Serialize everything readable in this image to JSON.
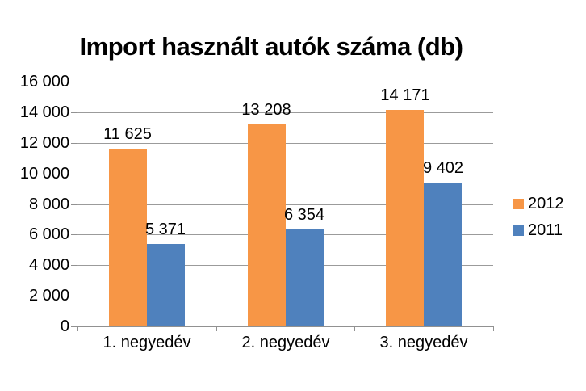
{
  "chart_data": {
    "type": "bar",
    "title": "Import használt autók száma (db)",
    "categories": [
      "1. negyedév",
      "2. negyedév",
      "3. negyedév"
    ],
    "series": [
      {
        "name": "2012",
        "color": "#F79646",
        "values": [
          11625,
          13208,
          14171
        ],
        "labels": [
          "11 625",
          "13 208",
          "14 171"
        ]
      },
      {
        "name": "2011",
        "color": "#4F81BD",
        "values": [
          5371,
          6354,
          9402
        ],
        "labels": [
          "5 371",
          "6 354",
          "9 402"
        ]
      }
    ],
    "xlabel": "",
    "ylabel": "",
    "ylim": [
      0,
      16000
    ],
    "ytick_step": 2000,
    "yticks": [
      0,
      2000,
      4000,
      6000,
      8000,
      10000,
      12000,
      14000,
      16000
    ],
    "ytick_labels": [
      "0",
      "2 000",
      "4 000",
      "6 000",
      "8 000",
      "10 000",
      "12 000",
      "14 000",
      "16 000"
    ],
    "grid": true,
    "data_labels": true,
    "legend_position": "right"
  },
  "colors": {
    "series_2012": "#F79646",
    "series_2011": "#4F81BD",
    "gridline": "#9b9b9b",
    "axis": "#919191",
    "text": "#000000",
    "background": "#ffffff"
  }
}
